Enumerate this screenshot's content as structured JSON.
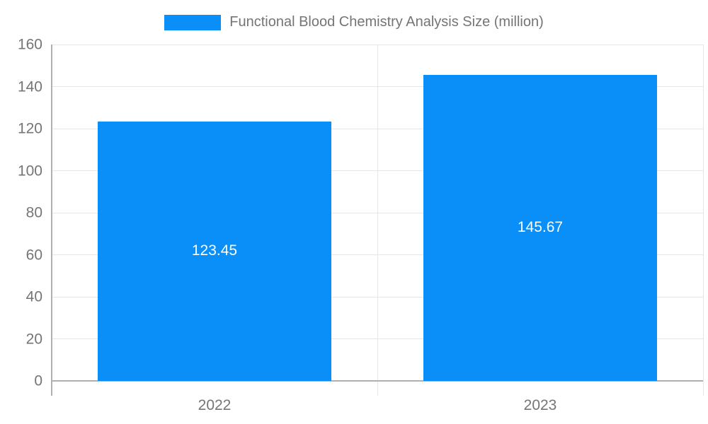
{
  "chart_data": {
    "type": "bar",
    "title": "Functional Blood Chemistry Analysis Size (million)",
    "categories": [
      "2022",
      "2023"
    ],
    "series": [
      {
        "name": "Functional Blood Chemistry Analysis Size (million)",
        "values": [
          123.45,
          145.67
        ],
        "data_labels": [
          "123.45",
          "145.67"
        ]
      }
    ],
    "xlabel": "",
    "ylabel": "",
    "ylim": [
      0,
      160
    ],
    "ytick_step": 20,
    "ytick_labels": [
      "0",
      "20",
      "40",
      "60",
      "80",
      "100",
      "120",
      "140",
      "160"
    ],
    "grid": true,
    "legend_position": "top-center",
    "colors": {
      "bar": "#0a8ff9",
      "gridline": "#e6e6e6",
      "axis_line": "#b0b0b0",
      "tick_label": "#757575",
      "value_label": "#ffffff",
      "background": "#ffffff"
    }
  }
}
